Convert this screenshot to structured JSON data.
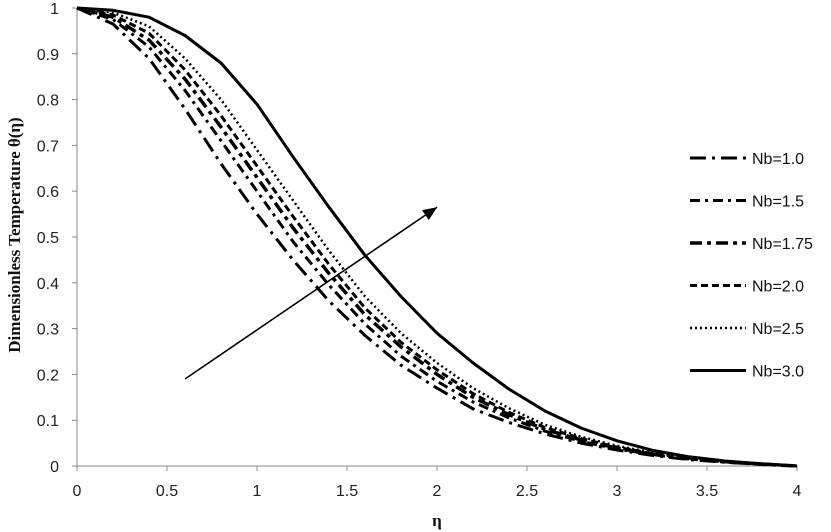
{
  "chart_data": {
    "type": "line",
    "title": "",
    "xlabel": "η",
    "ylabel": "Dimensionless Temperature θ(η)",
    "xlim": [
      0,
      4
    ],
    "ylim": [
      0,
      1
    ],
    "xticks": [
      "0",
      "0.5",
      "1",
      "1.5",
      "2",
      "2.5",
      "3",
      "3.5",
      "4"
    ],
    "yticks": [
      "0",
      "0.1",
      "0.2",
      "0.3",
      "0.4",
      "0.5",
      "0.6",
      "0.7",
      "0.8",
      "0.9",
      "1"
    ],
    "grid": false,
    "legend_position": "right",
    "x": [
      0,
      0.2,
      0.4,
      0.6,
      0.8,
      1.0,
      1.2,
      1.4,
      1.6,
      1.8,
      2.0,
      2.2,
      2.4,
      2.6,
      2.8,
      3.0,
      3.2,
      3.4,
      3.6,
      3.8,
      4.0
    ],
    "series": [
      {
        "name": "Nb=1.0",
        "dash": "long-dash-dot",
        "values": [
          1.0,
          0.965,
          0.89,
          0.78,
          0.66,
          0.55,
          0.45,
          0.36,
          0.285,
          0.22,
          0.17,
          0.125,
          0.095,
          0.07,
          0.05,
          0.035,
          0.023,
          0.014,
          0.008,
          0.004,
          0.0
        ]
      },
      {
        "name": "Nb=1.5",
        "dash": "dash-dot",
        "values": [
          1.0,
          0.975,
          0.915,
          0.82,
          0.71,
          0.6,
          0.49,
          0.395,
          0.31,
          0.24,
          0.185,
          0.14,
          0.105,
          0.076,
          0.054,
          0.037,
          0.025,
          0.015,
          0.009,
          0.004,
          0.0
        ]
      },
      {
        "name": "Nb=1.75",
        "dash": "dash-dot-bold",
        "values": [
          1.0,
          0.98,
          0.93,
          0.845,
          0.74,
          0.63,
          0.52,
          0.42,
          0.33,
          0.26,
          0.2,
          0.15,
          0.112,
          0.08,
          0.057,
          0.039,
          0.026,
          0.016,
          0.009,
          0.004,
          0.0
        ]
      },
      {
        "name": "Nb=2.0",
        "dash": "short-dash",
        "values": [
          1.0,
          0.985,
          0.945,
          0.865,
          0.765,
          0.655,
          0.545,
          0.44,
          0.345,
          0.27,
          0.21,
          0.158,
          0.117,
          0.084,
          0.06,
          0.041,
          0.027,
          0.017,
          0.01,
          0.005,
          0.0
        ]
      },
      {
        "name": "Nb=2.5",
        "dash": "dotted",
        "values": [
          1.0,
          0.99,
          0.96,
          0.89,
          0.8,
          0.69,
          0.58,
          0.47,
          0.37,
          0.29,
          0.225,
          0.17,
          0.126,
          0.09,
          0.064,
          0.044,
          0.029,
          0.018,
          0.011,
          0.005,
          0.0
        ]
      },
      {
        "name": "Nb=3.0",
        "dash": "solid",
        "values": [
          1.0,
          0.995,
          0.98,
          0.94,
          0.88,
          0.79,
          0.675,
          0.565,
          0.46,
          0.37,
          0.29,
          0.225,
          0.168,
          0.12,
          0.083,
          0.055,
          0.034,
          0.02,
          0.011,
          0.005,
          0.0
        ]
      }
    ],
    "annotation": {
      "type": "arrow",
      "from": [
        0.6,
        0.19
      ],
      "to": [
        2.0,
        0.565
      ],
      "meaning": "increasing Nb"
    }
  }
}
